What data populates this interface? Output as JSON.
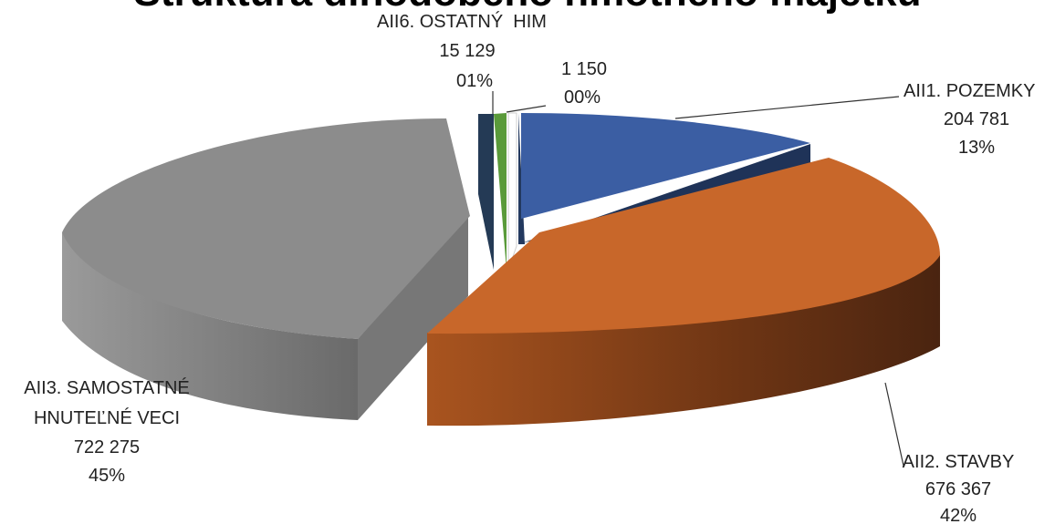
{
  "chart_data": {
    "type": "pie",
    "title": "Štruktúra dlhodobého hmotného majetku",
    "slices": [
      {
        "label": "AII1. POZEMKY",
        "value": 204781,
        "value_text": "204 781",
        "percent_text": "13%",
        "color": "#3b5ea3"
      },
      {
        "label": "AII2. STAVBY",
        "value": 676367,
        "value_text": "676 367",
        "percent_text": "42%",
        "color": "#c8672a"
      },
      {
        "label": "AII3. SAMOSTATNÉ HNUTEĽNÉ VECI",
        "label_lines": [
          "AII3. SAMOSTATNÉ",
          "HNUTEĽNÉ VECI"
        ],
        "value": 722275,
        "value_text": "722 275",
        "percent_text": "45%",
        "color": "#8c8c8c"
      },
      {
        "label": "",
        "value": 1150,
        "value_text": "1 150",
        "percent_text": "00%",
        "color": "#d0d0d0"
      },
      {
        "label": "AII6. OSTATNÝ  HIM",
        "value": 15129,
        "value_text": "15 129",
        "percent_text": "01%",
        "color": "#5a9a3a"
      }
    ]
  }
}
